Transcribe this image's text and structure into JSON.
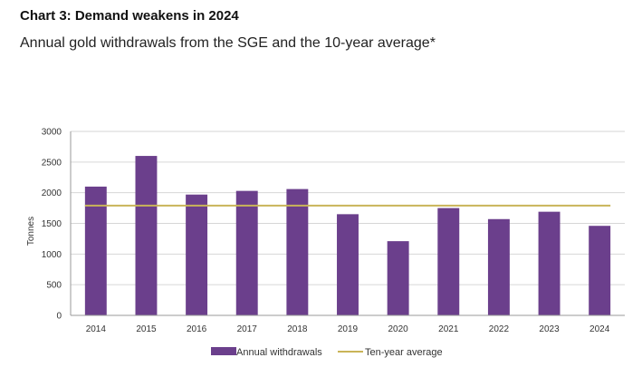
{
  "chart_data": {
    "type": "bar",
    "title": "Chart 3: Demand weakens in 2024",
    "subtitle": "Annual gold withdrawals from the SGE and the 10-year average*",
    "ylabel": "Tonnes",
    "xlabel": "",
    "ylim": [
      0,
      3000
    ],
    "yticks": [
      0,
      500,
      1000,
      1500,
      2000,
      2500,
      3000
    ],
    "grid": true,
    "legend_position": "bottom",
    "categories": [
      "2014",
      "2015",
      "2016",
      "2017",
      "2018",
      "2019",
      "2020",
      "2021",
      "2022",
      "2023",
      "2024"
    ],
    "series": [
      {
        "name": "Annual withdrawals",
        "type": "bar",
        "color": "#6b3f8c",
        "values": [
          2100,
          2600,
          1970,
          2030,
          2060,
          1650,
          1210,
          1750,
          1570,
          1690,
          1460
        ]
      },
      {
        "name": "Ten-year average",
        "type": "line",
        "color": "#c9b458",
        "values": [
          1790,
          1790,
          1790,
          1790,
          1790,
          1790,
          1790,
          1790,
          1790,
          1790,
          1790
        ]
      }
    ]
  }
}
